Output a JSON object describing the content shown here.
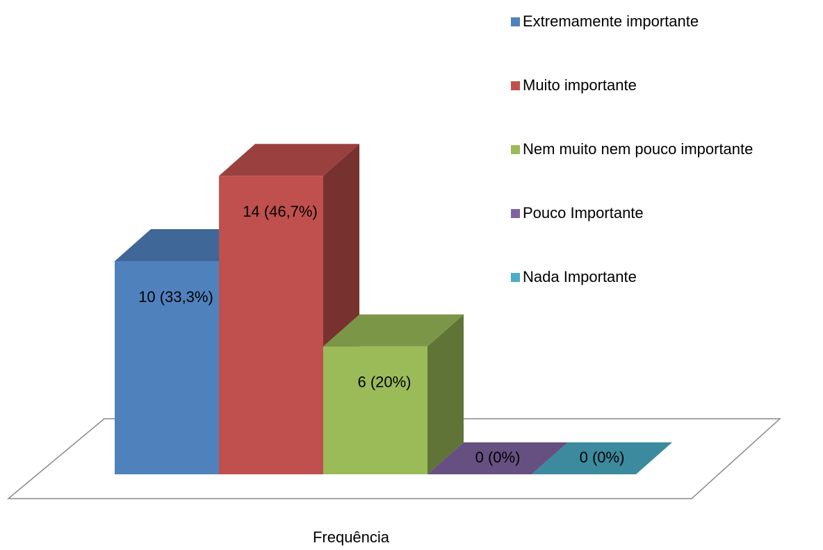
{
  "chart_data": {
    "type": "bar3d",
    "categories": [
      "Frequência"
    ],
    "series": [
      {
        "name": "Extremamente importante",
        "color": "#4f81bd",
        "values": [
          10
        ],
        "value_labels": [
          "10 (33,3%)"
        ]
      },
      {
        "name": "Muito importante",
        "color": "#c0504d",
        "values": [
          14
        ],
        "value_labels": [
          "14 (46,7%)"
        ]
      },
      {
        "name": "Nem muito nem pouco importante",
        "color": "#9bbb59",
        "values": [
          6
        ],
        "value_labels": [
          "6 (20%)"
        ]
      },
      {
        "name": "Pouco Importante",
        "color": "#8064a2",
        "values": [
          0
        ],
        "value_labels": [
          "0 (0%)"
        ]
      },
      {
        "name": "Nada Importante",
        "color": "#4bacc6",
        "values": [
          0
        ],
        "value_labels": [
          "0 (0%)"
        ]
      }
    ]
  }
}
